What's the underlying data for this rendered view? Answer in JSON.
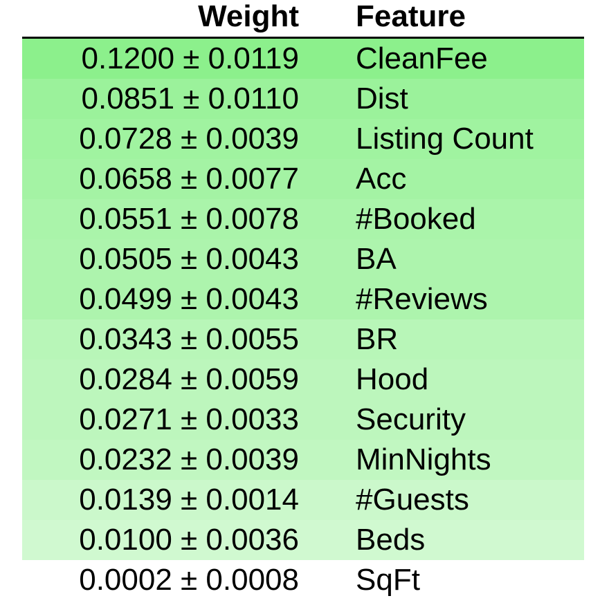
{
  "chart_data": {
    "type": "table",
    "columns": [
      "Weight",
      "Feature"
    ],
    "rows": [
      {
        "weight": 0.12,
        "std": 0.0119,
        "weight_text": "0.1200 ± 0.0119",
        "feature": "CleanFee"
      },
      {
        "weight": 0.0851,
        "std": 0.011,
        "weight_text": "0.0851 ± 0.0110",
        "feature": "Dist"
      },
      {
        "weight": 0.0728,
        "std": 0.0039,
        "weight_text": "0.0728 ± 0.0039",
        "feature": "Listing Count"
      },
      {
        "weight": 0.0658,
        "std": 0.0077,
        "weight_text": "0.0658 ± 0.0077",
        "feature": "Acc"
      },
      {
        "weight": 0.0551,
        "std": 0.0078,
        "weight_text": "0.0551 ± 0.0078",
        "feature": "#Booked"
      },
      {
        "weight": 0.0505,
        "std": 0.0043,
        "weight_text": "0.0505 ± 0.0043",
        "feature": "BA"
      },
      {
        "weight": 0.0499,
        "std": 0.0043,
        "weight_text": "0.0499 ± 0.0043",
        "feature": "#Reviews"
      },
      {
        "weight": 0.0343,
        "std": 0.0055,
        "weight_text": "0.0343 ± 0.0055",
        "feature": "BR"
      },
      {
        "weight": 0.0284,
        "std": 0.0059,
        "weight_text": "0.0284 ± 0.0059",
        "feature": "Hood"
      },
      {
        "weight": 0.0271,
        "std": 0.0033,
        "weight_text": "0.0271 ± 0.0033",
        "feature": "Security"
      },
      {
        "weight": 0.0232,
        "std": 0.0039,
        "weight_text": "0.0232 ± 0.0039",
        "feature": "MinNights"
      },
      {
        "weight": 0.0139,
        "std": 0.0014,
        "weight_text": "0.0139 ± 0.0014",
        "feature": "#Guests"
      },
      {
        "weight": 0.01,
        "std": 0.0036,
        "weight_text": "0.0100 ± 0.0036",
        "feature": "Beds"
      },
      {
        "weight": 0.0002,
        "std": 0.0008,
        "weight_text": "0.0002 ± 0.0008",
        "feature": "SqFt"
      }
    ],
    "colors": {
      "max_fill": "#8cf08c",
      "min_fill": "#ffffff",
      "header_rule": "#000000"
    }
  }
}
